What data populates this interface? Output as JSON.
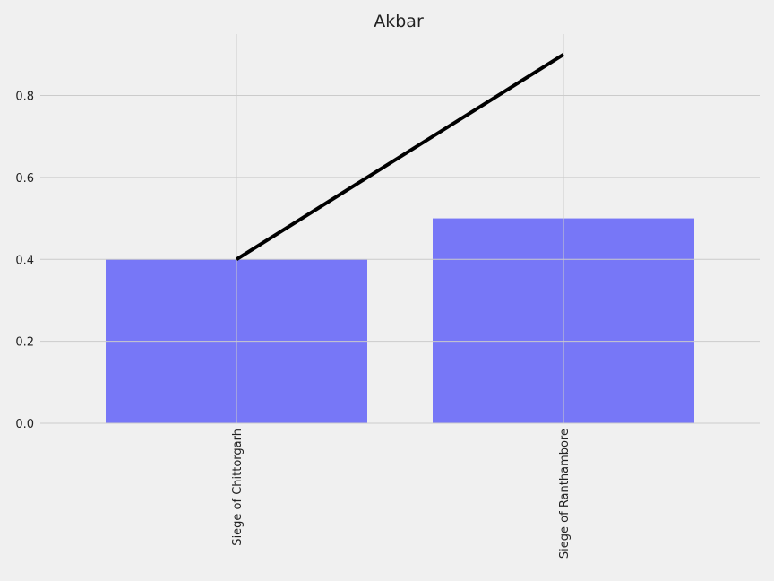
{
  "chart_data": {
    "type": "bar",
    "title": "Akbar",
    "xlabel": "",
    "ylabel": "",
    "categories": [
      "Siege of Chittorgarh",
      "Siege of Ranthambore"
    ],
    "series": [
      {
        "type": "bar",
        "values": [
          0.4,
          0.5
        ]
      },
      {
        "type": "line",
        "values": [
          0.4,
          0.9
        ]
      }
    ],
    "ylim": [
      0,
      0.95
    ],
    "yticks": [
      "0.0",
      "0.2",
      "0.4",
      "0.6",
      "0.8"
    ],
    "grid": true,
    "colors": {
      "bar": "#7777f7",
      "line": "#000000",
      "background": "#f0f0f0",
      "grid": "#cbcbcb"
    }
  }
}
